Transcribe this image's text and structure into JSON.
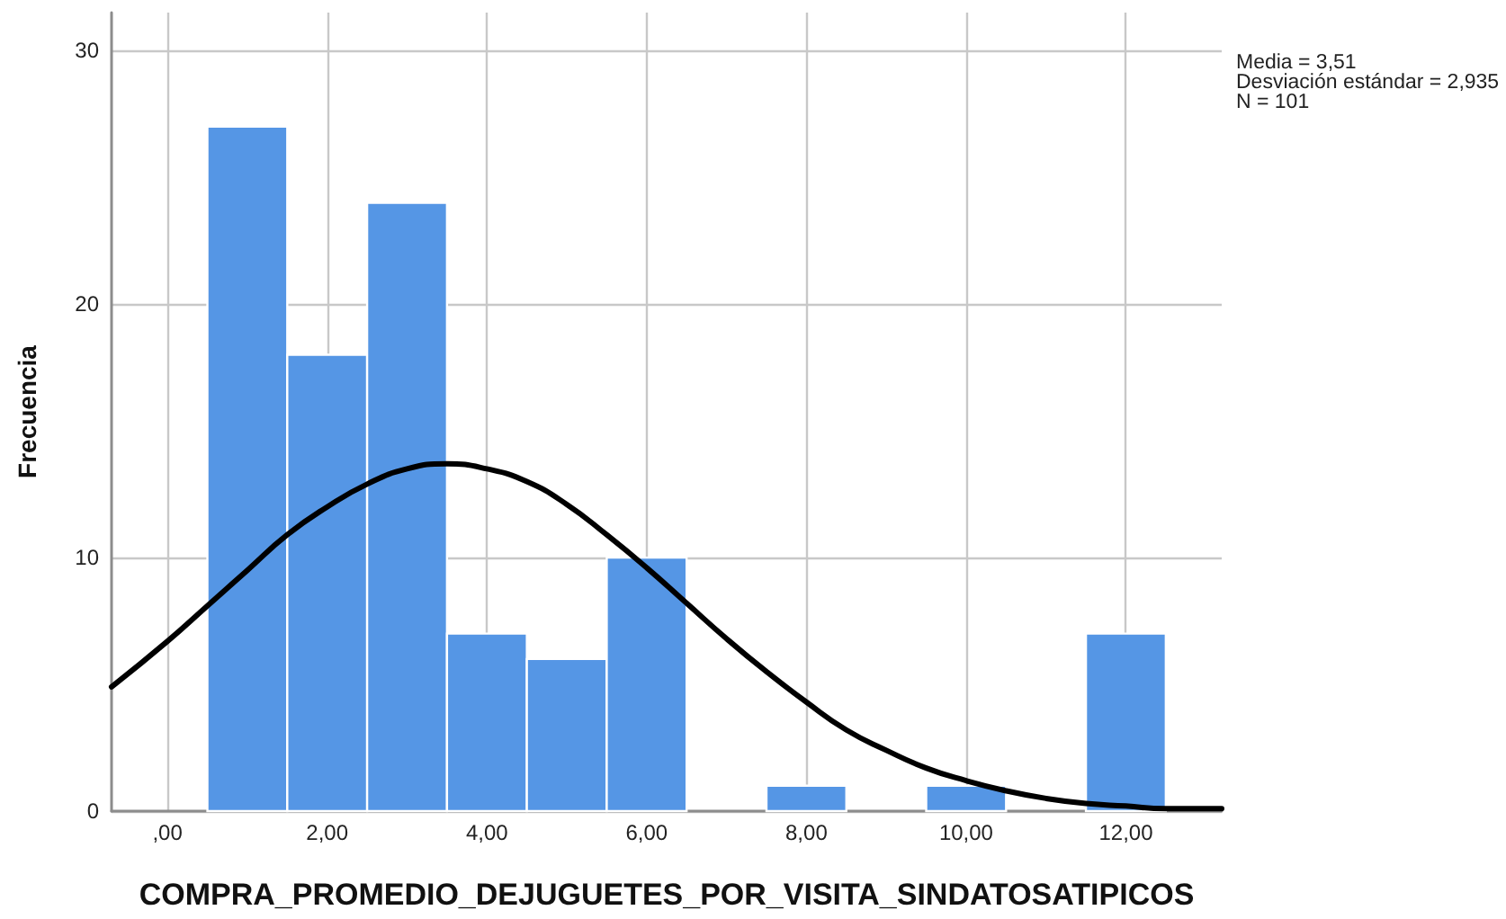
{
  "chart_data": {
    "type": "histogram",
    "xlabel": "COMPRA_PROMEDIO_DEJUGUETES_POR_VISITA_SINDATOSATIPICOS",
    "ylabel": "Frecuencia",
    "bins": [
      0.5,
      1.5,
      2.5,
      3.5,
      4.5,
      5.5,
      6.5,
      7.5,
      8.5,
      9.5,
      10.5,
      11.5,
      12.5
    ],
    "series": [
      {
        "values": [
          27,
          18,
          24,
          7,
          6,
          10,
          0,
          1,
          0,
          1,
          0,
          7
        ],
        "color": "#5596e5"
      },
      {
        "type": "line",
        "color": "#000000",
        "x": [
          -0.7,
          0,
          0.5,
          1,
          1.5,
          2,
          2.5,
          3,
          3.5,
          4,
          4.5,
          5,
          5.5,
          6,
          6.5,
          7,
          7.5,
          8,
          8.5,
          9,
          9.5,
          10,
          10.5,
          11,
          11.5,
          12,
          12.5,
          13,
          13.2
        ],
        "values": [
          4.9,
          6.7,
          8.1,
          9.5,
          10.9,
          12.0,
          12.9,
          13.5,
          13.7,
          13.5,
          13.0,
          12.1,
          10.9,
          9.6,
          8.2,
          6.8,
          5.5,
          4.3,
          3.2,
          2.4,
          1.7,
          1.2,
          0.8,
          0.5,
          0.3,
          0.2,
          0.1,
          0.1,
          0.1
        ]
      }
    ],
    "xlim": [
      -0.7,
      13.2
    ],
    "xticks": [
      {
        "value": 0,
        "label": ",00"
      },
      {
        "value": 2,
        "label": "2,00"
      },
      {
        "value": 4,
        "label": "4,00"
      },
      {
        "value": 6,
        "label": "6,00"
      },
      {
        "value": 8,
        "label": "8,00"
      },
      {
        "value": 10,
        "label": "10,00"
      },
      {
        "value": 12,
        "label": "12,00"
      }
    ],
    "ylim": [
      0,
      31.5
    ],
    "yticks": [
      0,
      10,
      20,
      30
    ],
    "grid": true,
    "marker": "none",
    "annotations": [
      "Media = 3,51",
      "Desviación estándar = 2,935",
      "N = 101"
    ]
  }
}
